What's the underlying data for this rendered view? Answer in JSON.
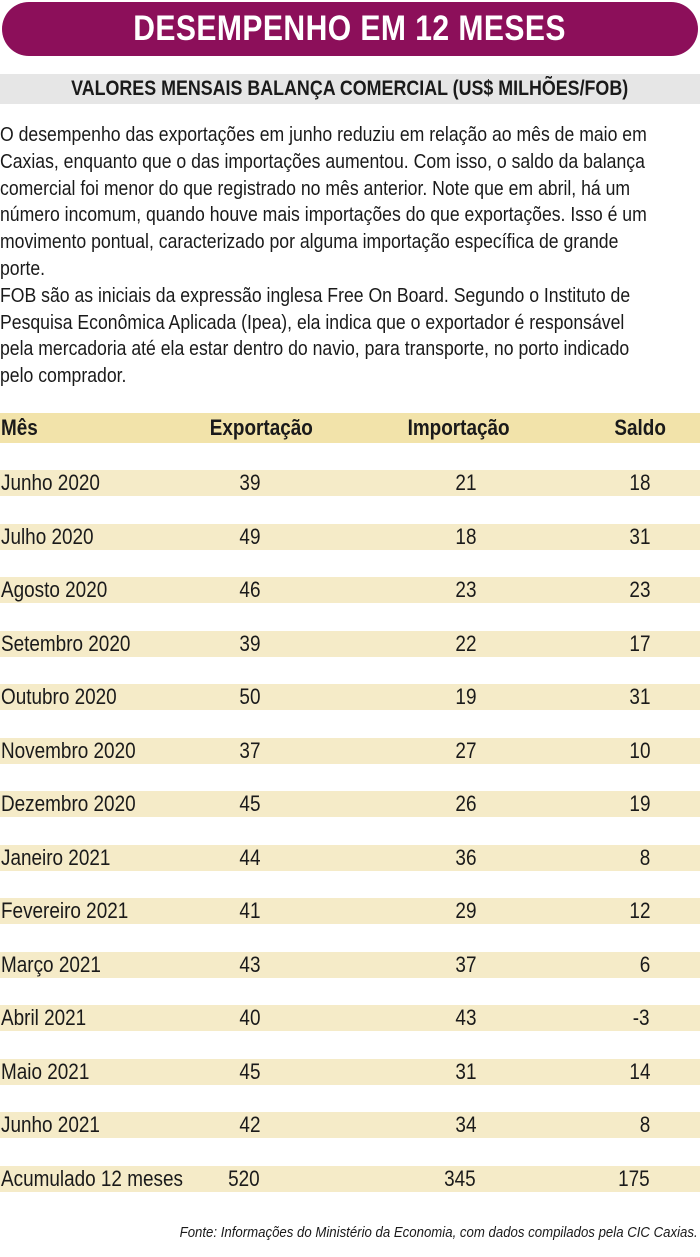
{
  "title": "DESEMPENHO EM 12 MESES",
  "subtitle": "VALORES MENSAIS BALANÇA COMERCIAL (US$ MILHÕES/FOB)",
  "description_lines": [
    "O desempenho das exportações em junho reduziu em relação ao mês de maio em",
    "Caxias, enquanto que o das importações aumentou. Com isso, o saldo da balança",
    "comercial foi menor do que registrado no mês anterior. Note que em abril, há um",
    "número incomum, quando houve mais importações do que exportações. Isso é um",
    "movimento pontual, caracterizado por alguma importação específica de grande",
    "porte.",
    "FOB são as iniciais da expressão inglesa Free On Board. Segundo o Instituto de",
    "Pesquisa Econômica Aplicada (Ipea), ela indica que o exportador é responsável",
    "pela mercadoria até ela estar dentro do navio, para transporte, no porto indicado",
    "pelo comprador."
  ],
  "table": {
    "headers": {
      "mes": "Mês",
      "exportacao": "Exportação",
      "importacao": "Importação",
      "saldo": "Saldo"
    },
    "rows": [
      {
        "mes": "Junho 2020",
        "exportacao": "39",
        "importacao": "21",
        "saldo": "18"
      },
      {
        "mes": "Julho 2020",
        "exportacao": "49",
        "importacao": "18",
        "saldo": "31"
      },
      {
        "mes": "Agosto 2020",
        "exportacao": "46",
        "importacao": "23",
        "saldo": "23"
      },
      {
        "mes": "Setembro 2020",
        "exportacao": "39",
        "importacao": "22",
        "saldo": "17"
      },
      {
        "mes": "Outubro 2020",
        "exportacao": "50",
        "importacao": "19",
        "saldo": "31"
      },
      {
        "mes": "Novembro 2020",
        "exportacao": "37",
        "importacao": "27",
        "saldo": "10"
      },
      {
        "mes": "Dezembro 2020",
        "exportacao": "45",
        "importacao": "26",
        "saldo": "19"
      },
      {
        "mes": "Janeiro 2021",
        "exportacao": "44",
        "importacao": "36",
        "saldo": "8"
      },
      {
        "mes": "Fevereiro 2021",
        "exportacao": "41",
        "importacao": "29",
        "saldo": "12"
      },
      {
        "mes": "Março 2021",
        "exportacao": "43",
        "importacao": "37",
        "saldo": "6"
      },
      {
        "mes": "Abril 2021",
        "exportacao": "40",
        "importacao": "43",
        "saldo": "-3"
      },
      {
        "mes": "Maio 2021",
        "exportacao": "45",
        "importacao": "31",
        "saldo": "14"
      },
      {
        "mes": "Junho 2021",
        "exportacao": "42",
        "importacao": "34",
        "saldo": "8"
      },
      {
        "mes": "Acumulado 12 meses",
        "exportacao": "520",
        "importacao": "345",
        "saldo": "175"
      }
    ]
  },
  "source": "Fonte: Informações do Ministério da Economia, com dados compilados pela CIC Caxias.",
  "colors": {
    "title_bg": "#8c0f5a",
    "subtitle_bg": "#e6e6e6",
    "header_row_bg": "#f2e3aa",
    "row_bg": "#f5ebc8"
  }
}
